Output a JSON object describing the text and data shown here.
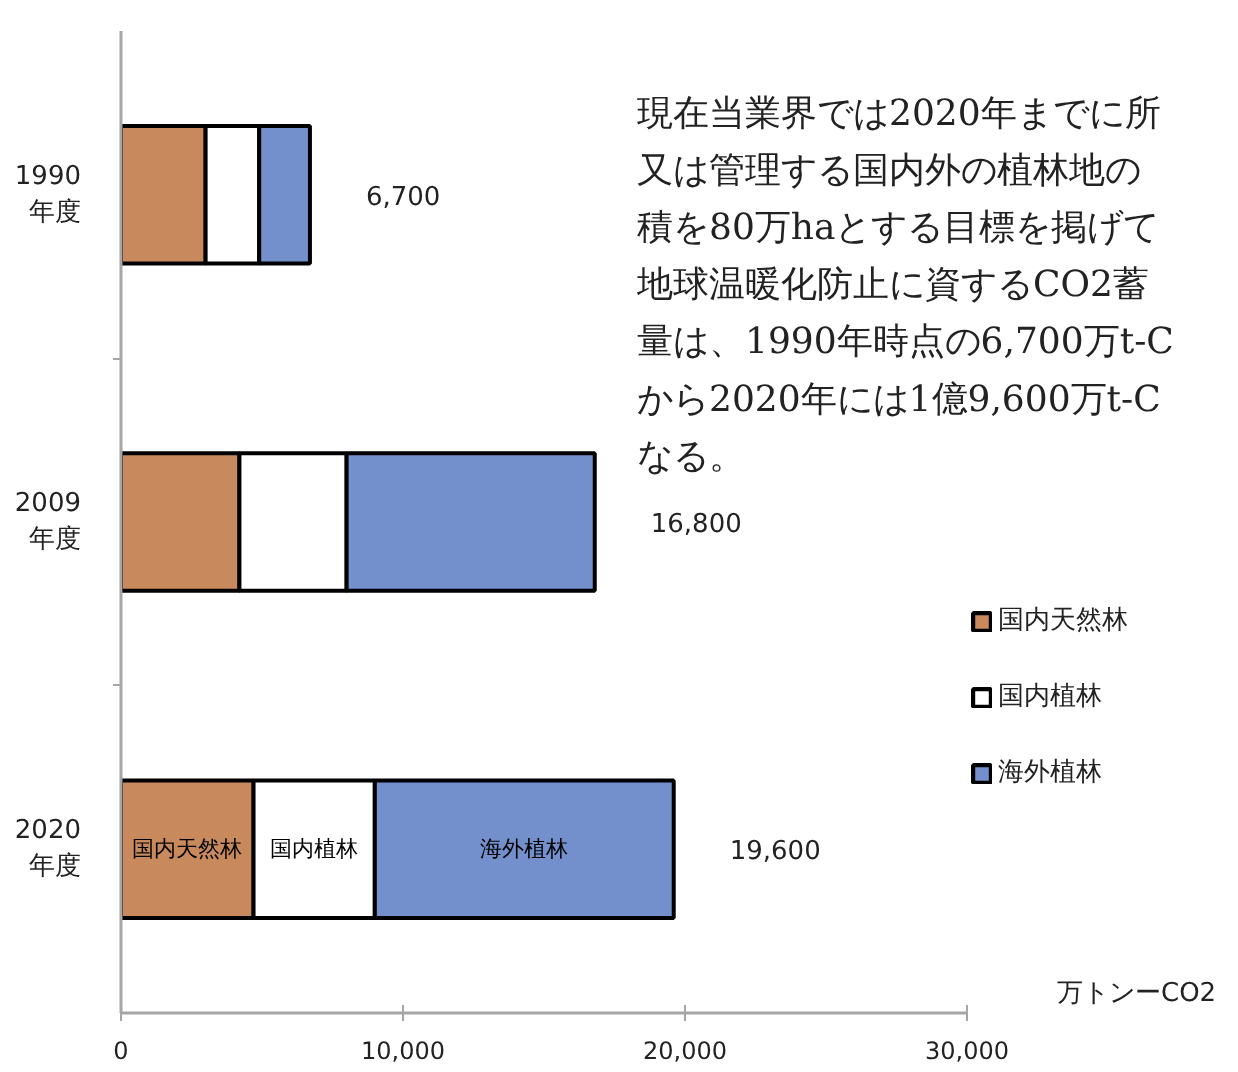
{
  "chart_data": {
    "type": "bar",
    "orientation": "horizontal",
    "stacked": true,
    "categories": [
      "1990\n年度",
      "2009\n年度",
      "2020\n年度"
    ],
    "series": [
      {
        "name": "国内天然林",
        "color": "#c8895c",
        "values": [
          3000,
          4200,
          4700
        ]
      },
      {
        "name": "国内植林",
        "color": "#ffffff",
        "values": [
          1900,
          3800,
          4300
        ]
      },
      {
        "name": "海外植林",
        "color": "#7390cc",
        "values": [
          1800,
          8800,
          10600
        ]
      }
    ],
    "xlim": [
      0,
      30000
    ],
    "xticks": [
      0,
      {
        "value": 10000,
        "label": "10,000"
      },
      {
        "value": 20000,
        "label": "20,000"
      },
      {
        "value": 30000,
        "label": "30,000"
      }
    ],
    "xlabel": "万トンーCO2",
    "totals": [
      "6,700",
      "16,800",
      "19,600"
    ],
    "legend": "right",
    "grid": false,
    "annotations": [
      "国内天然林",
      "国内植林",
      "海外植林",
      "現在当業界では2020年までに所又は管理する国内外の植林地の積を80万haとする目標を掲げて地球温暖化防止に資するCO2蓄量は、1990年時点の6,700万t-Cから2020年には1億9,600万t-Cなる。"
    ]
  }
}
